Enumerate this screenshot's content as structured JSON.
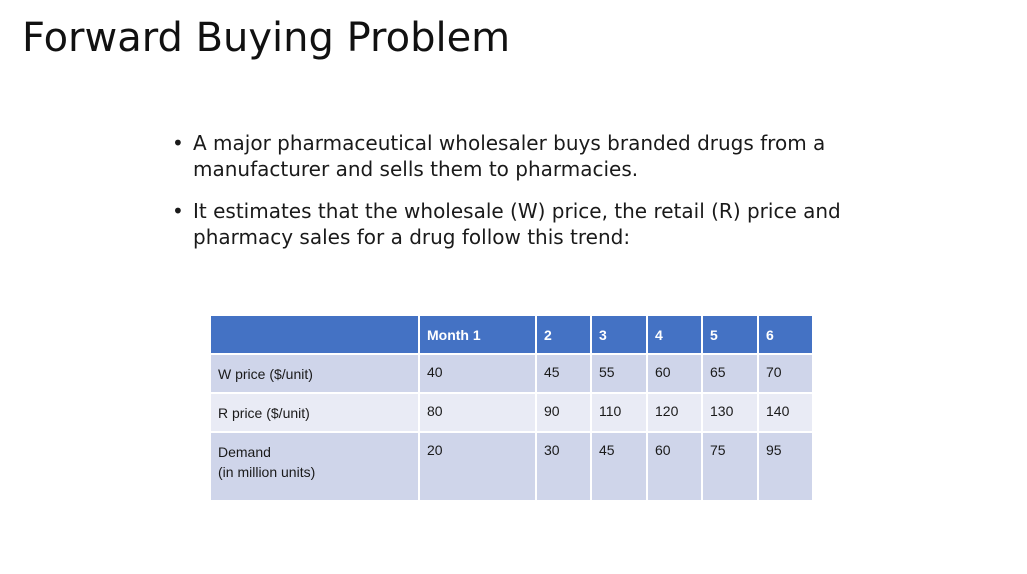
{
  "slide": {
    "title": "Forward Buying Problem",
    "bullets": [
      "A major pharmaceutical wholesaler buys branded drugs from a manufacturer and sells them to pharmacies.",
      "It estimates that the wholesale (W) price, the retail (R) price and pharmacy sales for a drug follow this trend:"
    ],
    "bullet_glyph": "•"
  },
  "table": {
    "header": [
      "",
      "Month 1",
      "2",
      "3",
      "4",
      "5",
      "6"
    ],
    "rows": [
      {
        "label": "W price ($/unit)",
        "values": [
          "40",
          "45",
          "55",
          "60",
          "65",
          "70"
        ]
      },
      {
        "label": "R price ($/unit)",
        "values": [
          "80",
          "90",
          "110",
          "120",
          "130",
          "140"
        ]
      },
      {
        "label": "Demand\n(in million units)",
        "values": [
          "20",
          "30",
          "45",
          "60",
          "75",
          "95"
        ]
      }
    ],
    "colors": {
      "header_bg": "#4472c4",
      "row_dark": "#cfd5ea",
      "row_light": "#e9ebf5"
    }
  }
}
